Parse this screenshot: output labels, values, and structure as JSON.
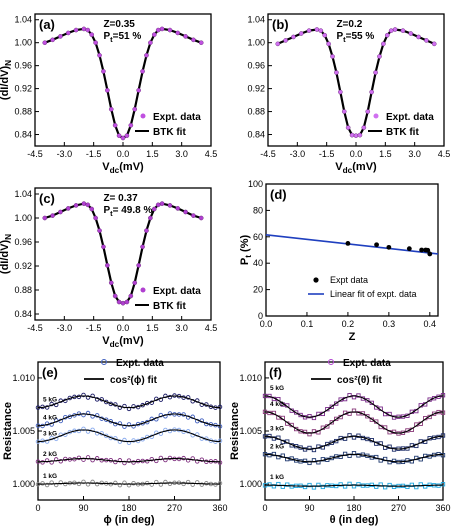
{
  "chart_data": [
    {
      "id": "a",
      "type": "scatter",
      "panel_label": "(a)",
      "annotations": [
        "Z=0.35",
        "Pt=51 %"
      ],
      "xlabel": "Vdc(mV)",
      "ylabel": "(dI/dV)N",
      "xlim": [
        -4.5,
        4.5
      ],
      "ylim": [
        0.82,
        1.05
      ],
      "xticks": [
        -4.5,
        -3.0,
        -1.5,
        0.0,
        1.5,
        3.0,
        4.5
      ],
      "xtick_labels": [
        "-4.5",
        "-3.0",
        "-1.5",
        "0.0",
        "1.5",
        "3.0",
        "4.5"
      ],
      "yticks": [
        0.84,
        0.88,
        0.92,
        0.96,
        1.0,
        1.04
      ],
      "ytick_labels": [
        "0.84",
        "0.88",
        "0.92",
        "0.96",
        "1.00",
        "1.04"
      ],
      "series": [
        {
          "name": "Expt. data",
          "color": "#c050e0",
          "x": [
            -4.0,
            -3.6,
            -3.2,
            -2.8,
            -2.4,
            -2.0,
            -1.8,
            -1.6,
            -1.4,
            -1.2,
            -1.0,
            -0.8,
            -0.6,
            -0.4,
            -0.2,
            0.0,
            0.2,
            0.4,
            0.6,
            0.8,
            1.0,
            1.2,
            1.4,
            1.6,
            1.8,
            2.0,
            2.4,
            2.8,
            3.2,
            3.6,
            4.0
          ],
          "values": [
            1.0,
            1.005,
            1.011,
            1.017,
            1.022,
            1.024,
            1.022,
            1.014,
            1.0,
            0.978,
            0.95,
            0.917,
            0.884,
            0.856,
            0.838,
            0.834,
            0.838,
            0.856,
            0.884,
            0.917,
            0.95,
            0.978,
            1.0,
            1.014,
            1.022,
            1.024,
            1.022,
            1.017,
            1.011,
            1.005,
            1.0
          ]
        },
        {
          "name": "BTK fit",
          "color": "#000000",
          "x": [
            -4.0,
            -3.6,
            -3.2,
            -2.8,
            -2.4,
            -2.0,
            -1.8,
            -1.6,
            -1.4,
            -1.2,
            -1.0,
            -0.8,
            -0.6,
            -0.4,
            -0.2,
            0.0,
            0.2,
            0.4,
            0.6,
            0.8,
            1.0,
            1.2,
            1.4,
            1.6,
            1.8,
            2.0,
            2.4,
            2.8,
            3.2,
            3.6,
            4.0
          ],
          "values": [
            1.0,
            1.005,
            1.011,
            1.017,
            1.022,
            1.024,
            1.022,
            1.014,
            1.0,
            0.978,
            0.95,
            0.917,
            0.884,
            0.856,
            0.838,
            0.834,
            0.838,
            0.856,
            0.884,
            0.917,
            0.95,
            0.978,
            1.0,
            1.014,
            1.022,
            1.024,
            1.022,
            1.017,
            1.011,
            1.005,
            1.0
          ]
        }
      ],
      "legend_position": "bottom-right"
    },
    {
      "id": "b",
      "type": "scatter",
      "panel_label": "(b)",
      "annotations": [
        "Z=0.2",
        "Pt=55 %"
      ],
      "xlabel": "Vdc(mV)",
      "ylabel": "",
      "xlim": [
        -4.5,
        4.5
      ],
      "ylim": [
        0.82,
        1.05
      ],
      "xticks": [
        -4.5,
        -3.0,
        -1.5,
        0.0,
        1.5,
        3.0,
        4.5
      ],
      "xtick_labels": [
        "-4.5",
        "-3.0",
        "-1.5",
        "0.0",
        "1.5",
        "3.0",
        "4.5"
      ],
      "yticks": [
        0.84,
        0.88,
        0.92,
        0.96,
        1.0,
        1.04
      ],
      "ytick_labels": [
        "0.84",
        "0.88",
        "0.92",
        "0.96",
        "1.00",
        "1.04"
      ],
      "series": [
        {
          "name": "Expt. data",
          "color": "#d070f0",
          "x": [
            -4.0,
            -3.6,
            -3.2,
            -2.8,
            -2.4,
            -2.0,
            -1.8,
            -1.6,
            -1.4,
            -1.2,
            -1.0,
            -0.8,
            -0.6,
            -0.4,
            -0.2,
            0.0,
            0.2,
            0.4,
            0.6,
            0.8,
            1.0,
            1.2,
            1.4,
            1.6,
            1.8,
            2.0,
            2.4,
            2.8,
            3.2,
            3.6,
            4.0
          ],
          "values": [
            0.998,
            1.004,
            1.01,
            1.016,
            1.021,
            1.023,
            1.021,
            1.013,
            0.998,
            0.976,
            0.948,
            0.914,
            0.88,
            0.852,
            0.839,
            0.838,
            0.839,
            0.852,
            0.88,
            0.914,
            0.948,
            0.976,
            0.998,
            1.013,
            1.021,
            1.023,
            1.021,
            1.016,
            1.01,
            1.004,
            0.998
          ]
        },
        {
          "name": "BTK fit",
          "color": "#000000",
          "x": [
            -4.0,
            -3.6,
            -3.2,
            -2.8,
            -2.4,
            -2.0,
            -1.8,
            -1.6,
            -1.4,
            -1.2,
            -1.0,
            -0.8,
            -0.6,
            -0.4,
            -0.2,
            0.0,
            0.2,
            0.4,
            0.6,
            0.8,
            1.0,
            1.2,
            1.4,
            1.6,
            1.8,
            2.0,
            2.4,
            2.8,
            3.2,
            3.6,
            4.0
          ],
          "values": [
            0.998,
            1.004,
            1.01,
            1.016,
            1.021,
            1.023,
            1.021,
            1.013,
            0.998,
            0.976,
            0.948,
            0.914,
            0.88,
            0.852,
            0.839,
            0.838,
            0.839,
            0.852,
            0.88,
            0.914,
            0.948,
            0.976,
            0.998,
            1.013,
            1.021,
            1.023,
            1.021,
            1.016,
            1.01,
            1.004,
            0.998
          ]
        }
      ],
      "legend_position": "bottom-right"
    },
    {
      "id": "c",
      "type": "scatter",
      "panel_label": "(c)",
      "annotations": [
        "Z= 0.37",
        "Pt= 49.8 %"
      ],
      "xlabel": "Vdc(mV)",
      "ylabel": "(dI/dV)N",
      "xlim": [
        -4.5,
        4.5
      ],
      "ylim": [
        0.83,
        1.05
      ],
      "xticks": [
        -4.5,
        -3.0,
        -1.5,
        0.0,
        1.5,
        3.0,
        4.5
      ],
      "xtick_labels": [
        "-4.5",
        "-3.0",
        "-1.5",
        "0.0",
        "1.5",
        "3.0",
        "4.5"
      ],
      "yticks": [
        0.84,
        0.88,
        0.92,
        0.96,
        1.0,
        1.04
      ],
      "ytick_labels": [
        "0.84",
        "0.88",
        "0.92",
        "0.96",
        "1.00",
        "1.04"
      ],
      "series": [
        {
          "name": "Expt. data",
          "color": "#b040d0",
          "x": [
            -4.0,
            -3.6,
            -3.2,
            -2.8,
            -2.4,
            -2.0,
            -1.8,
            -1.6,
            -1.4,
            -1.2,
            -1.0,
            -0.8,
            -0.6,
            -0.4,
            -0.2,
            0.0,
            0.2,
            0.4,
            0.6,
            0.8,
            1.0,
            1.2,
            1.4,
            1.6,
            1.8,
            2.0,
            2.4,
            2.8,
            3.2,
            3.6,
            4.0
          ],
          "values": [
            1.0,
            1.004,
            1.01,
            1.016,
            1.021,
            1.024,
            1.022,
            1.015,
            1.0,
            0.979,
            0.952,
            0.921,
            0.892,
            0.87,
            0.86,
            0.858,
            0.86,
            0.87,
            0.892,
            0.921,
            0.952,
            0.979,
            1.0,
            1.015,
            1.022,
            1.024,
            1.021,
            1.016,
            1.01,
            1.004,
            1.0
          ]
        },
        {
          "name": "BTK fit",
          "color": "#000000",
          "x": [
            -4.0,
            -3.6,
            -3.2,
            -2.8,
            -2.4,
            -2.0,
            -1.8,
            -1.6,
            -1.4,
            -1.2,
            -1.0,
            -0.8,
            -0.6,
            -0.4,
            -0.2,
            0.0,
            0.2,
            0.4,
            0.6,
            0.8,
            1.0,
            1.2,
            1.4,
            1.6,
            1.8,
            2.0,
            2.4,
            2.8,
            3.2,
            3.6,
            4.0
          ],
          "values": [
            1.0,
            1.004,
            1.01,
            1.016,
            1.021,
            1.024,
            1.022,
            1.015,
            1.0,
            0.979,
            0.952,
            0.921,
            0.892,
            0.87,
            0.86,
            0.858,
            0.86,
            0.87,
            0.892,
            0.921,
            0.952,
            0.979,
            1.0,
            1.015,
            1.022,
            1.024,
            1.021,
            1.016,
            1.01,
            1.004,
            1.0
          ]
        }
      ],
      "legend_position": "bottom-right"
    },
    {
      "id": "d",
      "type": "scatter",
      "panel_label": "(d)",
      "xlabel": "Z",
      "ylabel": "Pt (%)",
      "xlim": [
        0.0,
        0.42
      ],
      "ylim": [
        0,
        100
      ],
      "xticks": [
        0.0,
        0.1,
        0.2,
        0.3,
        0.4
      ],
      "xtick_labels": [
        "0.0",
        "0.1",
        "0.2",
        "0.3",
        "0.4"
      ],
      "yticks": [
        0,
        20,
        40,
        60,
        80,
        100
      ],
      "ytick_labels": [
        "0",
        "20",
        "40",
        "60",
        "80",
        "100"
      ],
      "series": [
        {
          "name": "Expt data",
          "color": "#000000",
          "x": [
            0.2,
            0.27,
            0.3,
            0.35,
            0.38,
            0.39,
            0.395,
            0.4
          ],
          "values": [
            55,
            54,
            52,
            51,
            50,
            50,
            49.8,
            47
          ]
        },
        {
          "name": "Linear fit of expt. data",
          "color": "#1f3fbf",
          "x": [
            0.0,
            0.42
          ],
          "values": [
            61.5,
            47.0
          ]
        }
      ],
      "legend_position": "bottom-right"
    },
    {
      "id": "e",
      "type": "scatter",
      "panel_label": "(e)",
      "xlabel": "ϕ (in deg)",
      "ylabel": "Resistance",
      "xlim": [
        0,
        360
      ],
      "ylim": [
        0.9985,
        1.0115
      ],
      "xticks": [
        0,
        90,
        180,
        270,
        360
      ],
      "xtick_labels": [
        "0",
        "90",
        "180",
        "270",
        "360"
      ],
      "yticks": [
        1.0,
        1.005,
        1.01
      ],
      "ytick_labels": [
        "1.000",
        "1.005",
        "1.010"
      ],
      "field_labels": [
        "5 kG",
        "4 kG",
        "3 kG",
        "2 kG",
        "1 kG"
      ],
      "series": [
        {
          "name": "5 kG",
          "color": "#1a1a66",
          "base": 1.0072,
          "amp": 0.0011,
          "phase": 90
        },
        {
          "name": "4 kG",
          "color": "#4060c0",
          "base": 1.0055,
          "amp": 0.0011,
          "phase": 90
        },
        {
          "name": "3 kG",
          "color": "#88aaee",
          "base": 1.004,
          "amp": 0.0011,
          "phase": 90
        },
        {
          "name": "2 kG",
          "color": "#803080",
          "base": 1.0021,
          "amp": 0.0003,
          "phase": 90
        },
        {
          "name": "1 kG",
          "color": "#8a8a8a",
          "base": 1.0,
          "amp": 0.0001,
          "phase": 90
        }
      ],
      "legend": [
        "Expt. data",
        "cos²(ϕ) fit"
      ],
      "legend_position": "top"
    },
    {
      "id": "f",
      "type": "scatter",
      "panel_label": "(f)",
      "xlabel": "θ (in deg)",
      "ylabel": "Resistance",
      "xlim": [
        0,
        360
      ],
      "ylim": [
        0.9985,
        1.0115
      ],
      "xticks": [
        0,
        90,
        180,
        270,
        360
      ],
      "xtick_labels": [
        "0",
        "90",
        "180",
        "270",
        "360"
      ],
      "yticks": [
        1.0,
        1.005,
        1.01
      ],
      "ytick_labels": [
        "1.000",
        "1.005",
        "1.010"
      ],
      "field_labels": [
        "5 kG",
        "4 kG",
        "3 kG",
        "2 kG",
        "1 kG"
      ],
      "series": [
        {
          "name": "5 kG",
          "color": "#7a2a8a",
          "base": 1.0063,
          "amp": 0.002,
          "phase": 0
        },
        {
          "name": "4 kG",
          "color": "#8a3a7a",
          "base": 1.0048,
          "amp": 0.002,
          "phase": 0
        },
        {
          "name": "3 kG",
          "color": "#1a2a66",
          "base": 1.0033,
          "amp": 0.0012,
          "phase": 0
        },
        {
          "name": "2 kG",
          "color": "#203a70",
          "base": 1.0021,
          "amp": 0.0007,
          "phase": 0
        },
        {
          "name": "1 kG",
          "color": "#20a8e0",
          "base": 0.9998,
          "amp": 0.0001,
          "phase": 0
        }
      ],
      "legend": [
        "Expt. data",
        "cos²(θ) fit"
      ],
      "legend_position": "top"
    }
  ]
}
